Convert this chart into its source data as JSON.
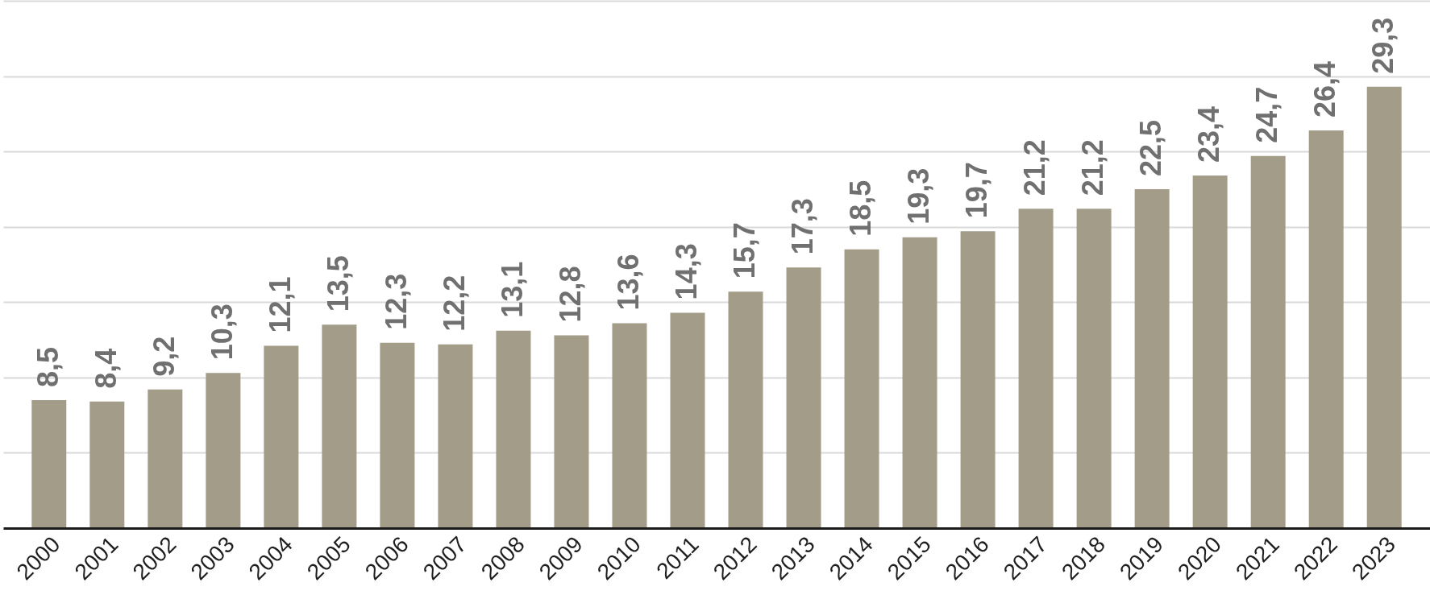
{
  "chart_data": {
    "type": "bar",
    "categories": [
      "2000",
      "2001",
      "2002",
      "2003",
      "2004",
      "2005",
      "2006",
      "2007",
      "2008",
      "2009",
      "2010",
      "2011",
      "2012",
      "2013",
      "2014",
      "2015",
      "2016",
      "2017",
      "2018",
      "2019",
      "2020",
      "2021",
      "2022",
      "2023"
    ],
    "values": [
      8.5,
      8.4,
      9.2,
      10.3,
      12.1,
      13.5,
      12.3,
      12.2,
      13.1,
      12.8,
      13.6,
      14.3,
      15.7,
      17.3,
      18.5,
      19.3,
      19.7,
      21.2,
      21.2,
      22.5,
      23.4,
      24.7,
      26.4,
      29.3
    ],
    "value_labels": [
      "8,5",
      "8,4",
      "9,2",
      "10,3",
      "12,1",
      "13,5",
      "12,3",
      "12,2",
      "13,1",
      "12,8",
      "13,6",
      "14,3",
      "15,7",
      "17,3",
      "18,5",
      "19,3",
      "19,7",
      "21,2",
      "21,2",
      "22,5",
      "23,4",
      "24,7",
      "26,4",
      "29,3"
    ],
    "color": "#a29c88",
    "ylim": [
      0,
      35
    ],
    "yticks": [
      {
        "value": 0,
        "label": null
      },
      {
        "value": 5,
        "label": null
      },
      {
        "value": 10,
        "label": null
      },
      {
        "value": 15,
        "label": null
      },
      {
        "value": 20,
        "label": null
      },
      {
        "value": 25,
        "label": null
      },
      {
        "value": 30,
        "label": null
      },
      {
        "value": 35,
        "label": null
      }
    ],
    "grid": "y",
    "tick_labels": "x"
  }
}
